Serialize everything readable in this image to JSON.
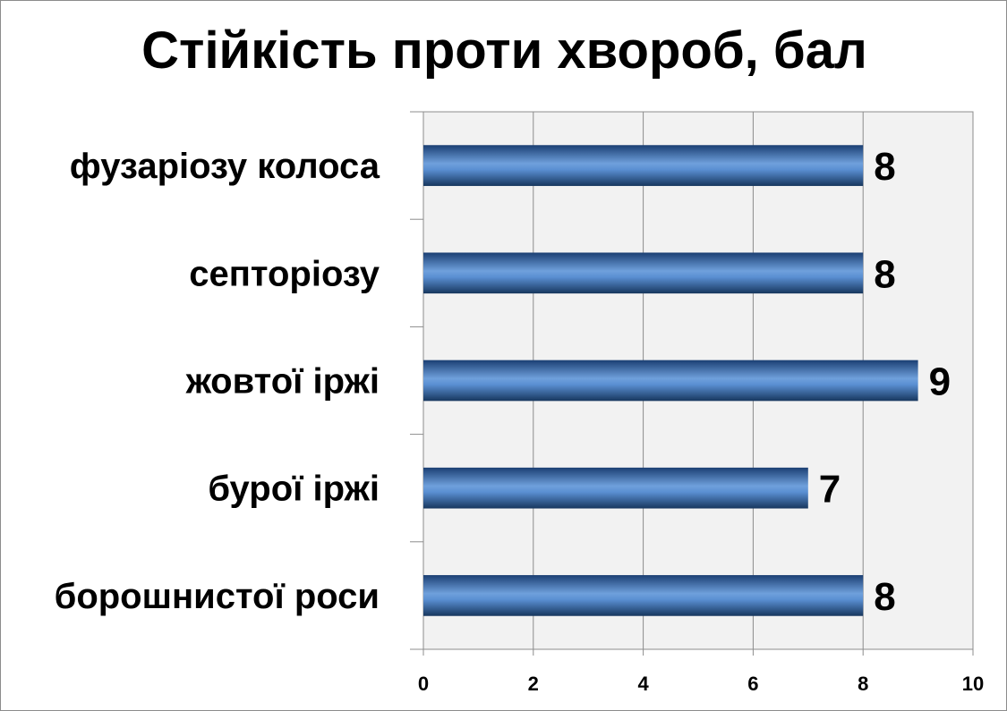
{
  "chart_data": {
    "type": "bar",
    "orientation": "horizontal",
    "title": "Стійкість проти хвороб, бал",
    "categories": [
      "фузаріозу колоса",
      "септоріозу",
      "жовтої іржі",
      "бурої іржі",
      "борошнистої роси"
    ],
    "values": [
      8,
      8,
      9,
      7,
      8
    ],
    "xlim": [
      0,
      10
    ],
    "x_ticks": [
      0,
      2,
      4,
      6,
      8,
      10
    ],
    "xlabel": "",
    "ylabel": "",
    "grid": true,
    "data_labels": true,
    "legend": "none",
    "colors": {
      "bar": "#3f72b5",
      "bar_dark": "#17375e",
      "bar_light": "#6fa0dc",
      "plot_background": "#f2f2f2",
      "gridline": "#8c8c8c"
    }
  }
}
